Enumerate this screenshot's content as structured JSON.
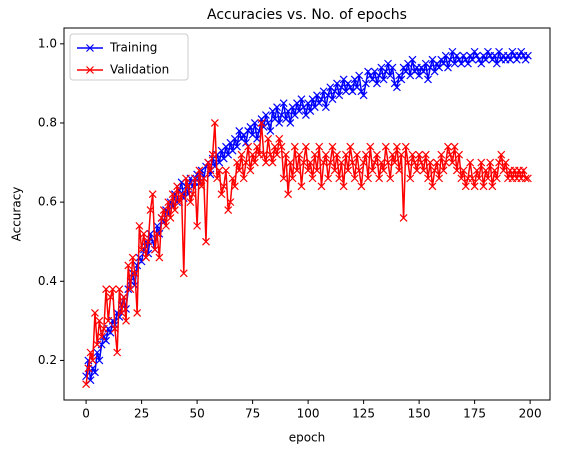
{
  "chart_data": {
    "type": "line",
    "title": "Accuracies vs. No. of epochs",
    "x_label": "epoch",
    "y_label": "Accuracy",
    "xlim": [
      -9.95,
      208.95
    ],
    "xticks": [
      0,
      25,
      50,
      75,
      100,
      125,
      150,
      175,
      200
    ],
    "ylim": [
      0.1,
      1.04
    ],
    "yticks": [
      0.2,
      0.4,
      0.6,
      0.8,
      {
        "value": 1,
        "label": "1.0"
      }
    ],
    "legend": "upper left",
    "marker": "x",
    "series": [
      {
        "name": "Training",
        "color": "#0000ff",
        "values": [
          0.16,
          0.2,
          0.15,
          0.18,
          0.17,
          0.22,
          0.2,
          0.24,
          0.26,
          0.25,
          0.28,
          0.27,
          0.3,
          0.29,
          0.32,
          0.31,
          0.34,
          0.36,
          0.33,
          0.38,
          0.4,
          0.42,
          0.39,
          0.44,
          0.46,
          0.45,
          0.48,
          0.5,
          0.47,
          0.52,
          0.5,
          0.48,
          0.54,
          0.52,
          0.56,
          0.55,
          0.58,
          0.57,
          0.6,
          0.59,
          0.62,
          0.6,
          0.63,
          0.65,
          0.61,
          0.64,
          0.62,
          0.66,
          0.64,
          0.65,
          0.67,
          0.65,
          0.68,
          0.66,
          0.69,
          0.7,
          0.67,
          0.71,
          0.69,
          0.72,
          0.7,
          0.73,
          0.71,
          0.74,
          0.72,
          0.75,
          0.73,
          0.76,
          0.74,
          0.78,
          0.76,
          0.77,
          0.75,
          0.78,
          0.79,
          0.77,
          0.8,
          0.76,
          0.78,
          0.81,
          0.79,
          0.82,
          0.8,
          0.78,
          0.83,
          0.81,
          0.84,
          0.8,
          0.82,
          0.85,
          0.81,
          0.83,
          0.8,
          0.84,
          0.82,
          0.85,
          0.83,
          0.86,
          0.84,
          0.82,
          0.85,
          0.83,
          0.86,
          0.84,
          0.87,
          0.85,
          0.86,
          0.88,
          0.84,
          0.87,
          0.89,
          0.86,
          0.88,
          0.9,
          0.87,
          0.89,
          0.91,
          0.88,
          0.9,
          0.89,
          0.88,
          0.91,
          0.89,
          0.92,
          0.88,
          0.87,
          0.9,
          0.93,
          0.92,
          0.91,
          0.93,
          0.9,
          0.92,
          0.94,
          0.91,
          0.93,
          0.95,
          0.92,
          0.94,
          0.9,
          0.89,
          0.92,
          0.91,
          0.94,
          0.93,
          0.95,
          0.92,
          0.96,
          0.93,
          0.94,
          0.92,
          0.94,
          0.93,
          0.95,
          0.91,
          0.94,
          0.96,
          0.93,
          0.95,
          0.94,
          0.96,
          0.95,
          0.97,
          0.94,
          0.96,
          0.98,
          0.95,
          0.97,
          0.96,
          0.95,
          0.97,
          0.96,
          0.95,
          0.97,
          0.96,
          0.98,
          0.97,
          0.96,
          0.95,
          0.97,
          0.96,
          0.98,
          0.97,
          0.96,
          0.97,
          0.95,
          0.98,
          0.96,
          0.97,
          0.96,
          0.97,
          0.96,
          0.98,
          0.97,
          0.96,
          0.97,
          0.98,
          0.97,
          0.96,
          0.97
        ]
      },
      {
        "name": "Validation",
        "color": "#ff0000",
        "values": [
          0.14,
          0.18,
          0.22,
          0.2,
          0.32,
          0.24,
          0.3,
          0.26,
          0.28,
          0.38,
          0.3,
          0.36,
          0.38,
          0.28,
          0.22,
          0.38,
          0.32,
          0.36,
          0.3,
          0.44,
          0.38,
          0.46,
          0.42,
          0.32,
          0.54,
          0.48,
          0.52,
          0.46,
          0.5,
          0.58,
          0.62,
          0.48,
          0.52,
          0.46,
          0.56,
          0.58,
          0.54,
          0.6,
          0.56,
          0.62,
          0.58,
          0.64,
          0.6,
          0.62,
          0.42,
          0.66,
          0.64,
          0.6,
          0.62,
          0.66,
          0.54,
          0.68,
          0.64,
          0.66,
          0.5,
          0.7,
          0.68,
          0.72,
          0.8,
          0.66,
          0.68,
          0.62,
          0.64,
          0.68,
          0.58,
          0.6,
          0.66,
          0.64,
          0.7,
          0.68,
          0.72,
          0.66,
          0.7,
          0.74,
          0.68,
          0.72,
          0.7,
          0.74,
          0.72,
          0.8,
          0.72,
          0.7,
          0.76,
          0.72,
          0.7,
          0.74,
          0.72,
          0.76,
          0.74,
          0.66,
          0.72,
          0.62,
          0.7,
          0.66,
          0.74,
          0.68,
          0.72,
          0.64,
          0.7,
          0.74,
          0.68,
          0.7,
          0.66,
          0.72,
          0.68,
          0.74,
          0.64,
          0.7,
          0.72,
          0.66,
          0.7,
          0.74,
          0.68,
          0.72,
          0.66,
          0.7,
          0.64,
          0.72,
          0.68,
          0.74,
          0.7,
          0.66,
          0.72,
          0.68,
          0.64,
          0.7,
          0.72,
          0.66,
          0.74,
          0.68,
          0.7,
          0.72,
          0.66,
          0.7,
          0.68,
          0.74,
          0.7,
          0.66,
          0.72,
          0.7,
          0.74,
          0.68,
          0.72,
          0.56,
          0.74,
          0.7,
          0.66,
          0.72,
          0.7,
          0.68,
          0.72,
          0.7,
          0.68,
          0.72,
          0.66,
          0.7,
          0.64,
          0.68,
          0.7,
          0.66,
          0.72,
          0.68,
          0.7,
          0.74,
          0.72,
          0.7,
          0.74,
          0.68,
          0.72,
          0.66,
          0.68,
          0.64,
          0.66,
          0.7,
          0.66,
          0.64,
          0.68,
          0.66,
          0.7,
          0.64,
          0.68,
          0.66,
          0.7,
          0.64,
          0.68,
          0.66,
          0.7,
          0.72,
          0.68,
          0.7,
          0.66,
          0.68,
          0.66,
          0.68,
          0.66,
          0.68,
          0.66,
          0.68,
          0.66,
          0.66
        ]
      }
    ]
  }
}
